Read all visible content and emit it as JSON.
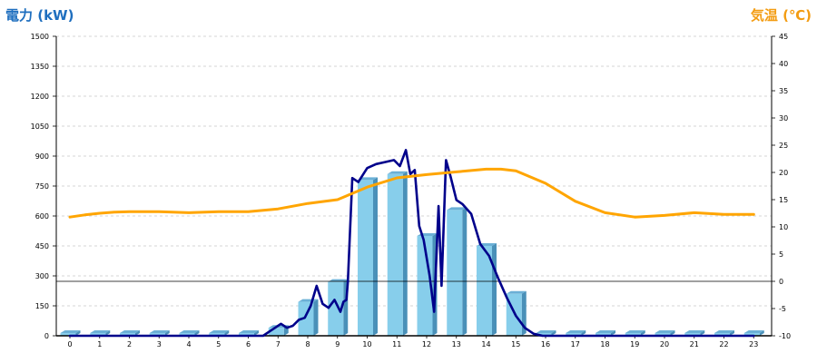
{
  "titles": {
    "left": "電力 (kW)",
    "right": "気温 (℃)"
  },
  "colors": {
    "bar_front": "#87CEEB",
    "bar_side": "#4A90B8",
    "bar_top": "#6BB0D6",
    "power_line": "#00008B",
    "temp_line": "#FFA500",
    "left_title": "#1f6fbf",
    "right_title": "#f39c12",
    "grid": "#c8c8c8"
  },
  "chart_data": {
    "type": "bar",
    "categories": [
      "0",
      "1",
      "2",
      "3",
      "4",
      "5",
      "6",
      "7",
      "8",
      "9",
      "10",
      "11",
      "12",
      "13",
      "14",
      "15",
      "16",
      "17",
      "18",
      "19",
      "20",
      "21",
      "22",
      "23"
    ],
    "series": [
      {
        "kind": "bar",
        "axis": "left",
        "values": [
          0,
          0,
          0,
          0,
          0,
          0,
          0,
          40,
          170,
          270,
          780,
          810,
          500,
          630,
          450,
          210,
          0,
          0,
          0,
          0,
          0,
          0,
          0,
          0
        ]
      },
      {
        "kind": "line",
        "axis": "left",
        "x": [
          0,
          6,
          6.5,
          6.7,
          6.9,
          7.1,
          7.3,
          7.5,
          7.7,
          7.9,
          8.1,
          8.3,
          8.5,
          8.7,
          8.9,
          9.1,
          9.2,
          9.3,
          9.35,
          9.5,
          9.7,
          10,
          10.3,
          10.6,
          10.9,
          11.1,
          11.3,
          11.45,
          11.6,
          11.75,
          11.9,
          12.1,
          12.25,
          12.4,
          12.5,
          12.65,
          12.8,
          13,
          13.2,
          13.5,
          13.8,
          14.1,
          14.4,
          14.7,
          15,
          15.3,
          15.6,
          15.9,
          16.2,
          16.5,
          17,
          18,
          19,
          20,
          21,
          22,
          23
        ],
        "y": [
          0,
          0,
          0,
          20,
          40,
          60,
          40,
          50,
          80,
          90,
          150,
          250,
          160,
          140,
          180,
          120,
          170,
          180,
          270,
          790,
          770,
          840,
          860,
          870,
          880,
          850,
          930,
          810,
          830,
          550,
          480,
          300,
          120,
          650,
          250,
          880,
          800,
          680,
          660,
          610,
          460,
          400,
          290,
          190,
          100,
          40,
          10,
          0,
          0,
          0,
          0,
          0,
          0,
          0,
          0,
          0,
          0
        ]
      },
      {
        "kind": "line",
        "axis": "right",
        "x": [
          0,
          0.5,
          1,
          1.5,
          2,
          3,
          4,
          5,
          6,
          7,
          8,
          9,
          10,
          11,
          12,
          13,
          14,
          14.5,
          15,
          16,
          17,
          18,
          19,
          20,
          21,
          22,
          23
        ],
        "y": [
          11.8,
          12.2,
          12.5,
          12.7,
          12.8,
          12.8,
          12.6,
          12.8,
          12.8,
          13.3,
          14.3,
          15.0,
          17.3,
          19.0,
          19.6,
          20.1,
          20.6,
          20.6,
          20.3,
          18.0,
          14.7,
          12.6,
          11.8,
          12.1,
          12.6,
          12.3,
          12.3
        ]
      }
    ],
    "y_left": {
      "label": "電力 (kW)",
      "ticks": [
        0,
        150,
        300,
        450,
        600,
        750,
        900,
        1050,
        1200,
        1350,
        1500
      ],
      "ylim": [
        0,
        1500
      ]
    },
    "y_right": {
      "label": "気温 (℃)",
      "ticks": [
        -10,
        -5,
        0,
        5,
        10,
        15,
        20,
        25,
        30,
        35,
        40,
        45
      ],
      "ylim": [
        -10,
        45
      ]
    },
    "grid": true,
    "reference_line": {
      "axis": "right",
      "value": 0
    }
  }
}
